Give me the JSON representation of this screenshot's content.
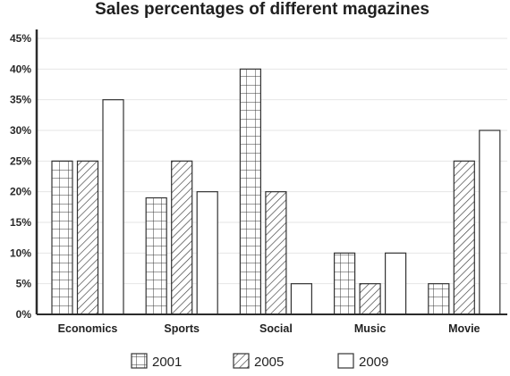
{
  "chart_data": {
    "type": "bar",
    "title": "Sales percentages of different magazines",
    "xlabel": "",
    "ylabel": "",
    "categories": [
      "Economics",
      "Sports",
      "Social",
      "Music",
      "Movie"
    ],
    "series": [
      {
        "name": "2001",
        "values": [
          25,
          19,
          40,
          10,
          5
        ],
        "pattern": "grid"
      },
      {
        "name": "2005",
        "values": [
          25,
          25,
          20,
          5,
          25
        ],
        "pattern": "diagonal-hatch"
      },
      {
        "name": "2009",
        "values": [
          35,
          20,
          5,
          10,
          30
        ],
        "pattern": "plain"
      }
    ],
    "ylim": [
      0,
      45
    ],
    "yticks": [
      0,
      5,
      10,
      15,
      20,
      25,
      30,
      35,
      40,
      45
    ],
    "ytick_suffix": "%",
    "grid": true,
    "legend_position": "bottom-center",
    "colors": {
      "bar_fill": "#ffffff",
      "bar_stroke": "#333333",
      "axis": "#2b2b2b",
      "grid": "#e6e6e6",
      "text": "#222222"
    }
  }
}
